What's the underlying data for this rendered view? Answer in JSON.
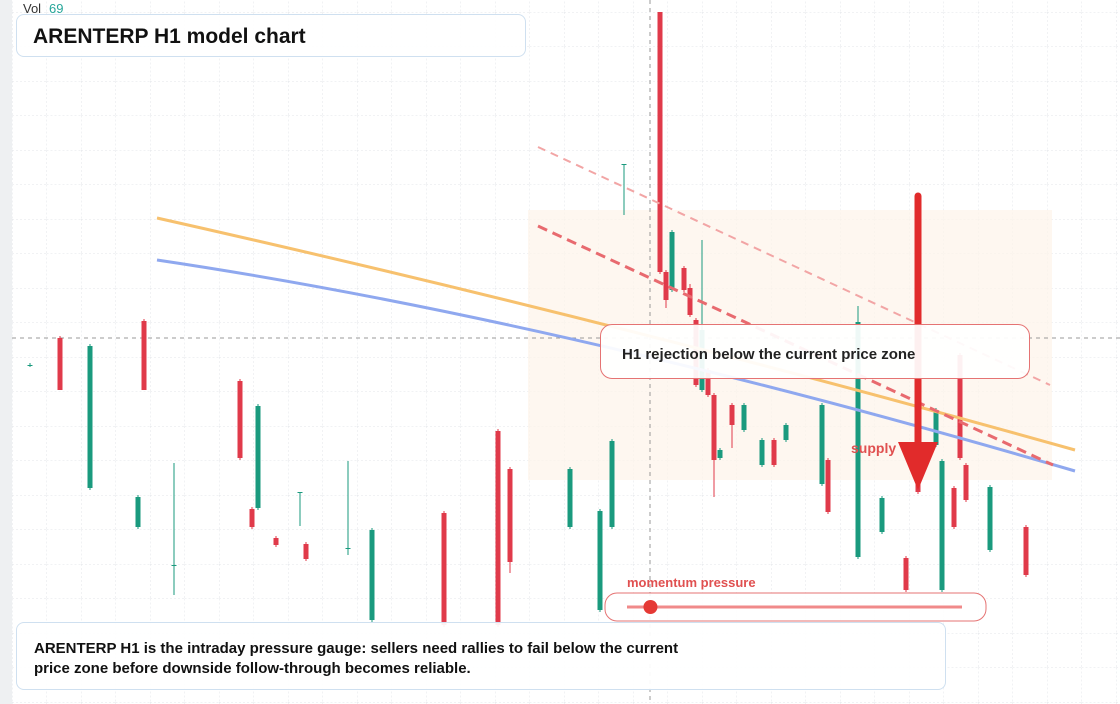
{
  "chart_data": {
    "type": "candlestick",
    "title": "ARENTERP H1 model chart",
    "volume": {
      "label": "Vol",
      "value": 69
    },
    "annotation": "H1 rejection below the current price zone",
    "zone_label": "supply",
    "momentum": {
      "label": "momentum pressure",
      "value": 7,
      "range": [
        0,
        100
      ]
    },
    "note": "ARENTERP H1 is the intraday pressure gauge: sellers need rallies to fail below the current price zone before downside follow-through becomes reliable.",
    "up_color": "#1a9a7e",
    "down_color": "#e03a4a",
    "xlim": [
      0,
      180
    ],
    "ylim": [
      0,
      70.4
    ],
    "x": [
      2,
      7,
      12,
      20,
      21,
      26,
      37,
      39,
      40,
      43,
      47,
      48,
      55,
      59,
      71,
      80,
      82,
      92,
      97,
      99,
      101,
      107,
      108,
      109,
      111,
      112,
      113,
      114,
      115,
      116,
      117,
      119,
      121,
      124,
      126,
      128,
      134,
      135,
      140,
      144,
      148,
      150,
      153,
      154,
      156,
      157,
      158,
      162,
      168
    ],
    "open": [
      33.9,
      36.6,
      21.6,
      17.7,
      38.3,
      13.9,
      32.3,
      19.5,
      19.6,
      16.6,
      21.2,
      16.0,
      15.6,
      8.4,
      19.1,
      27.3,
      23.5,
      17.7,
      9.4,
      17.7,
      54.0,
      69.2,
      43.2,
      41.4,
      43.6,
      41.6,
      38.4,
      31.4,
      33.4,
      30.9,
      24.6,
      29.9,
      27.4,
      23.9,
      26.4,
      26.4,
      22.0,
      24.4,
      14.7,
      17.2,
      14.6,
      28.4,
      25.9,
      11.4,
      21.6,
      34.9,
      23.9,
      15.4,
      17.7
    ],
    "high": [
      34.1,
      36.8,
      36.0,
      20.9,
      38.5,
      24.1,
      32.5,
      19.7,
      30.0,
      16.8,
      21.2,
      16.2,
      24.3,
      17.6,
      19.3,
      27.5,
      23.7,
      23.7,
      19.5,
      26.5,
      54.0,
      69.2,
      43.4,
      47.4,
      43.8,
      42.0,
      38.6,
      46.4,
      33.6,
      31.1,
      25.6,
      30.1,
      30.1,
      26.6,
      26.6,
      28.1,
      30.1,
      24.6,
      39.8,
      20.8,
      14.8,
      28.6,
      29.6,
      24.5,
      21.8,
      35.1,
      24.1,
      21.9,
      17.9
    ],
    "low": [
      33.7,
      31.4,
      21.4,
      17.5,
      31.4,
      10.9,
      24.4,
      17.5,
      19.4,
      15.7,
      17.8,
      14.3,
      14.9,
      8.2,
      7.7,
      7.7,
      13.1,
      17.5,
      9.2,
      17.5,
      48.9,
      43.0,
      39.6,
      41.2,
      41.2,
      38.7,
      31.7,
      31.2,
      30.7,
      20.7,
      24.4,
      25.6,
      27.2,
      23.7,
      23.7,
      26.2,
      21.8,
      19.0,
      14.5,
      17.0,
      11.2,
      21.0,
      25.7,
      11.2,
      17.5,
      24.4,
      20.2,
      15.2,
      12.7
    ],
    "close": [
      33.9,
      31.4,
      35.8,
      20.7,
      31.4,
      13.9,
      24.6,
      17.7,
      29.8,
      15.9,
      21.2,
      14.5,
      15.6,
      17.4,
      7.9,
      7.9,
      14.2,
      23.5,
      19.3,
      26.3,
      54.0,
      43.2,
      40.4,
      47.2,
      41.4,
      38.9,
      31.9,
      37.4,
      30.9,
      24.4,
      25.4,
      27.9,
      29.9,
      26.4,
      23.9,
      27.9,
      29.9,
      19.2,
      38.2,
      20.6,
      11.4,
      21.2,
      29.4,
      24.3,
      17.7,
      24.6,
      20.4,
      21.7,
      12.9
    ]
  }
}
